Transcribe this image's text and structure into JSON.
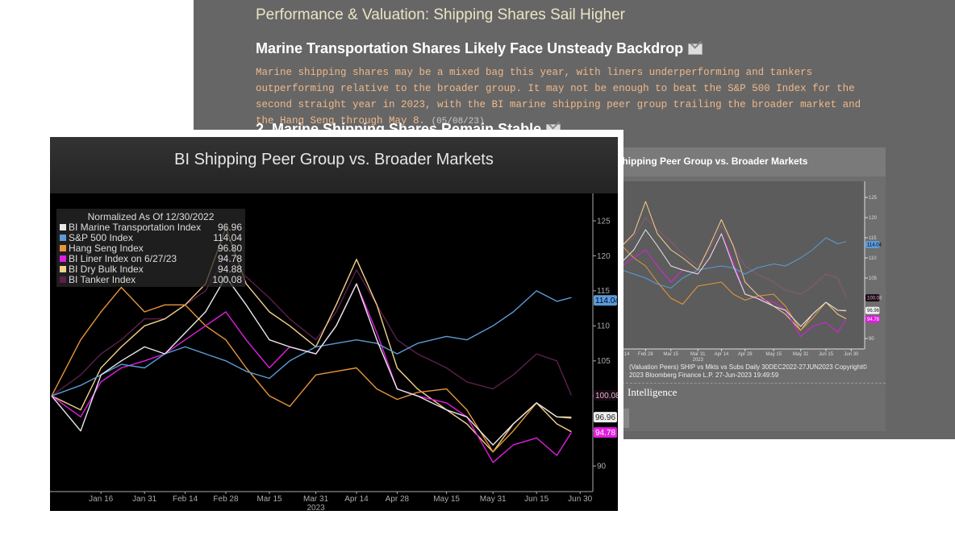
{
  "background_page": {
    "section_title": "Performance & Valuation: Shipping Shares Sail Higher",
    "heading": "Marine Transportation Shares Likely Face Unsteady Backdrop",
    "body": "Marine shipping shares may be a mixed bag this year, with liners underperforming and tankers outperforming relative to the broader group. It may not be enough to beat the S&P 500 Index for the second straight year in 2023, with the BI marine shipping peer group trailing the broader market and the Hang Seng through May 8.",
    "body_date": "(05/08/23)",
    "heading2": "2. Marine Shipping Shares Remain Stable",
    "chart_title": "BI Shipping Peer Group vs. Broader Markets",
    "chart_footer": "(Valuation Peers) SHIP vs Mkts vs Subs  Daily 30DEC2022-27JUN2023     Copyright© 2023 Bloomberg Finance L.P.     27-Jun-2023 19:49:59",
    "intelligence_label": "Intelligence",
    "mail_icon": "envelope-icon"
  },
  "chart_data": {
    "type": "line",
    "title": "BI Shipping Peer Group vs. Broader Markets",
    "legend_title": "Normalized As Of 12/30/2022",
    "legend_placement": "top-left",
    "xlabel": "2023",
    "x_ticks": [
      "Jan 16",
      "Jan 31",
      "Feb 14",
      "Feb 28",
      "Mar 15",
      "Mar 31",
      "Apr 14",
      "Apr 28",
      "May 15",
      "May 31",
      "Jun 15",
      "Jun 30"
    ],
    "x_tick_dates": [
      "2023-01-16",
      "2023-01-31",
      "2023-02-14",
      "2023-02-28",
      "2023-03-15",
      "2023-03-31",
      "2023-04-14",
      "2023-04-28",
      "2023-05-15",
      "2023-05-31",
      "2023-06-15",
      "2023-06-30"
    ],
    "y_ticks": [
      90,
      95,
      100,
      105,
      110,
      115,
      120,
      125
    ],
    "y_tick_labels": [
      "90",
      "105",
      "110",
      "115",
      "120",
      "125"
    ],
    "ylim": [
      86.5,
      128.5
    ],
    "xlim": [
      "2022-12-30",
      "2023-06-30"
    ],
    "grid": false,
    "y_axis_side": "right",
    "x": [
      "2022-12-30",
      "2023-01-09",
      "2023-01-16",
      "2023-01-23",
      "2023-01-31",
      "2023-02-07",
      "2023-02-14",
      "2023-02-21",
      "2023-02-28",
      "2023-03-07",
      "2023-03-15",
      "2023-03-22",
      "2023-03-31",
      "2023-04-07",
      "2023-04-14",
      "2023-04-21",
      "2023-04-28",
      "2023-05-05",
      "2023-05-15",
      "2023-05-22",
      "2023-05-31",
      "2023-06-07",
      "2023-06-15",
      "2023-06-22",
      "2023-06-27"
    ],
    "series": [
      {
        "name": "BI Marine Transportation Index",
        "last": "96.96",
        "color": "#e8e8e8",
        "values": [
          100,
          95,
          103,
          105,
          107,
          106,
          109,
          112,
          117,
          113,
          108,
          107,
          106,
          110,
          116,
          108,
          101,
          100,
          98,
          97,
          93,
          96,
          99,
          97,
          96.96
        ]
      },
      {
        "name": "S&P 500 Index",
        "last": "114.04",
        "color": "#5b9bd5",
        "values": [
          100,
          101.5,
          103,
          104.5,
          104,
          106,
          107,
          106,
          105,
          103.5,
          102.5,
          105,
          107,
          107.5,
          108,
          107.5,
          106,
          107.5,
          108.5,
          108,
          110,
          112,
          115,
          113.5,
          114.04
        ]
      },
      {
        "name": "Hang Seng Index",
        "last": "96.80",
        "color": "#e8963a",
        "values": [
          100,
          108,
          112,
          115.5,
          112,
          113,
          113,
          110,
          108,
          104,
          100,
          98.5,
          103,
          103.5,
          104,
          101,
          99.5,
          100.5,
          101,
          98,
          92,
          95,
          99,
          97,
          96.8
        ]
      },
      {
        "name": "BI Liner Index on 6/27/23",
        "last": "94.78",
        "color": "#e01ee0",
        "values": [
          100,
          97,
          102,
          104,
          105,
          106,
          108,
          110,
          112,
          108,
          104,
          107,
          106,
          110,
          116,
          109,
          101,
          100,
          99,
          97,
          90.5,
          93,
          94,
          91.5,
          94.78
        ]
      },
      {
        "name": "BI Dry Bulk Index",
        "last": "94.88",
        "color": "#f5d08a",
        "values": [
          100,
          98,
          104,
          107,
          110,
          111,
          113,
          116,
          124,
          116,
          112,
          110,
          107,
          113,
          119.5,
          113,
          104,
          101,
          98,
          96,
          92,
          96,
          99,
          96,
          94.88
        ]
      },
      {
        "name": "BI Tanker Index",
        "last": "100.08",
        "color": "#5e1f4c",
        "values": [
          100,
          103,
          106,
          108,
          111,
          111,
          113,
          115,
          120,
          117,
          114,
          111,
          108,
          112,
          118,
          113,
          108,
          106,
          104,
          102,
          101,
          103,
          106,
          105,
          100.08
        ]
      }
    ]
  }
}
